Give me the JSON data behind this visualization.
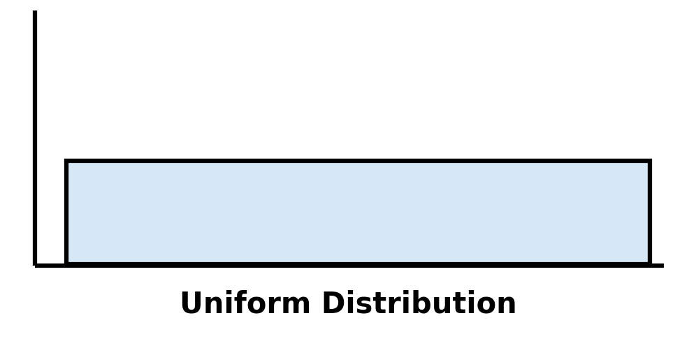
{
  "title": "Uniform Distribution",
  "title_fontsize": 30,
  "title_fontweight": "bold",
  "background_color": "#ffffff",
  "rect_facecolor": "#d6e8f5",
  "rect_edgecolor": "#000000",
  "line_color": "#000000",
  "linewidth": 4.5,
  "figwidth": 9.96,
  "figheight": 5.05,
  "dpi": 100
}
